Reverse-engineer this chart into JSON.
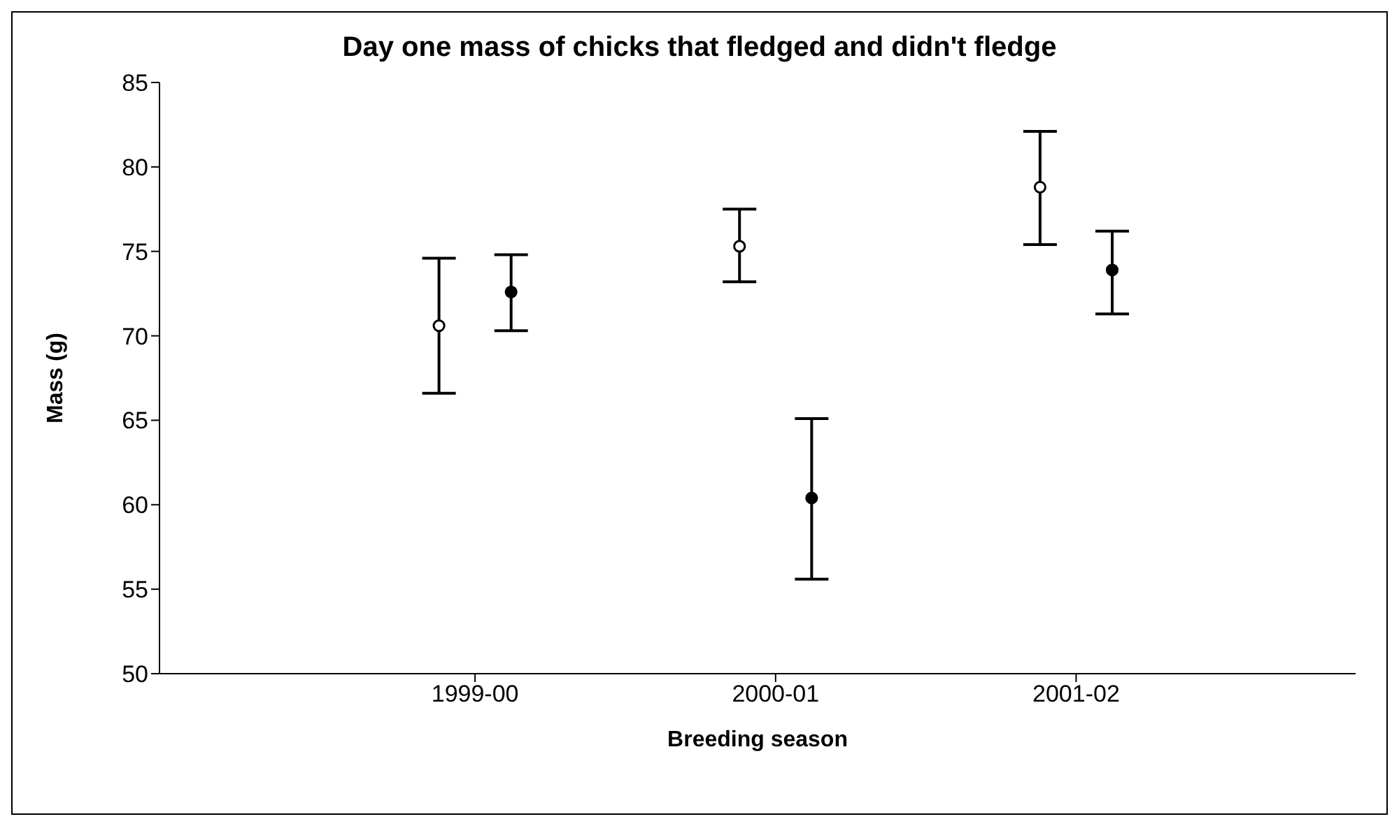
{
  "chart_data": {
    "type": "scatter",
    "title": "Day one mass of chicks that fledged and didn't fledge",
    "xlabel": "Breeding season",
    "ylabel": "Mass (g)",
    "categories": [
      "1999-00",
      "2000-01",
      "2001-02"
    ],
    "series": [
      {
        "color": "#ffffff",
        "values": [
          70.6,
          75.3,
          78.8
        ],
        "errors": [
          [
            66.6,
            74.6
          ],
          [
            73.2,
            77.5
          ],
          [
            75.4,
            82.1
          ]
        ]
      },
      {
        "color": "#000000",
        "values": [
          72.6,
          60.4,
          73.9
        ],
        "errors": [
          [
            70.3,
            74.8
          ],
          [
            55.6,
            65.1
          ],
          [
            71.3,
            76.2
          ]
        ]
      }
    ],
    "ylim": [
      50,
      85
    ],
    "yticks": [
      50,
      55,
      60,
      65,
      70,
      75,
      80,
      85
    ],
    "grid": false,
    "legend": false,
    "marker": "circle"
  }
}
